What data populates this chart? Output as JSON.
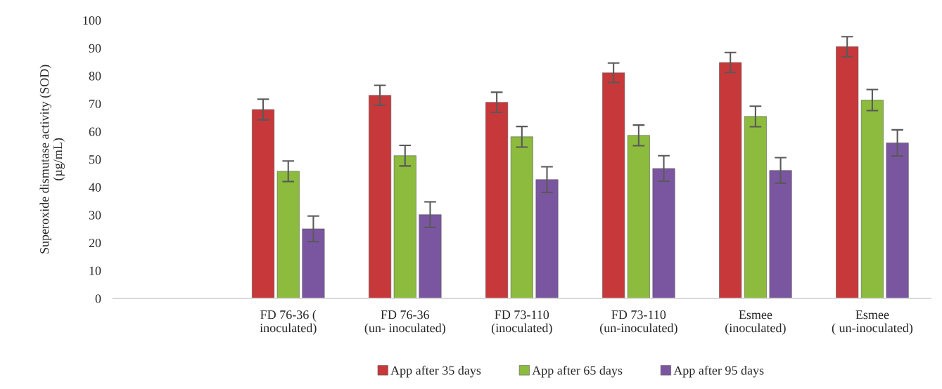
{
  "chart_data": {
    "type": "bar",
    "ylabel": "Superoxide dismutase activity (SOD)\n(µg/mL)",
    "categories": [
      null,
      "FD 76-36 (\ninoculated)",
      "FD 76-36\n(un- inoculated)",
      "FD 73-110\n(inoculated)",
      "FD 73-110\n(un-inoculated)",
      "Esmee\n(inoculated)",
      "Esmee\n( un-inoculated)"
    ],
    "series": [
      {
        "name": "App after 35 days",
        "color": "#c7383a",
        "values": [
          null,
          67.9,
          73.0,
          70.5,
          81.1,
          84.8,
          90.5
        ],
        "errors": [
          null,
          3.7,
          3.6,
          3.6,
          3.5,
          3.6,
          3.6
        ]
      },
      {
        "name": "App after 65 days",
        "color": "#8cbb3e",
        "values": [
          null,
          45.7,
          51.3,
          58.1,
          58.6,
          65.4,
          71.3
        ],
        "errors": [
          null,
          3.7,
          3.7,
          3.7,
          3.7,
          3.7,
          3.8
        ]
      },
      {
        "name": "App after 95 days",
        "color": "#7b56a0",
        "values": [
          null,
          25.0,
          30.1,
          42.7,
          46.7,
          46.0,
          55.9
        ],
        "errors": [
          null,
          4.6,
          4.6,
          4.6,
          4.6,
          4.6,
          4.7
        ]
      }
    ],
    "ylim": [
      0,
      100
    ],
    "yticks": [
      0,
      10,
      20,
      30,
      40,
      50,
      60,
      70,
      80,
      90,
      100
    ],
    "grid": false,
    "legend": "bottom"
  }
}
